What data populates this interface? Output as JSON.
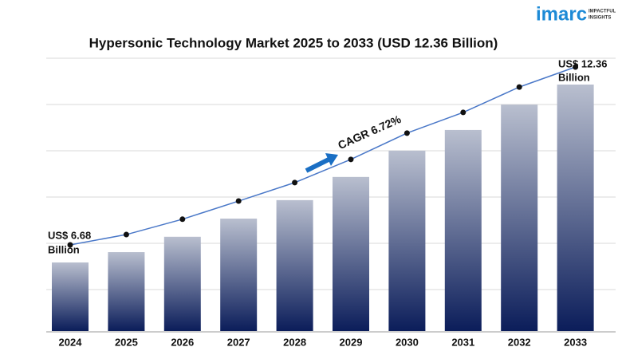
{
  "chart_data": {
    "type": "bar",
    "title": "Hypersonic Technology Market 2025 to 2033 (USD 12.36 Billion)",
    "brand": "imarc",
    "brand_tagline": [
      "IMPACTFUL",
      "INSIGHTS"
    ],
    "categories": [
      "2024",
      "2025",
      "2026",
      "2027",
      "2028",
      "2029",
      "2030",
      "2031",
      "2032",
      "2033"
    ],
    "values": [
      6.68,
      7.01,
      7.5,
      8.08,
      8.67,
      9.41,
      10.25,
      10.91,
      11.72,
      12.36
    ],
    "annotations": {
      "start": [
        "US$ 6.68",
        "Billion"
      ],
      "end": [
        "US$ 12.36",
        "Billion"
      ],
      "cagr": "CAGR 6.72%"
    },
    "color_top": "#b9bfcf",
    "color_bottom": "#0b1d5a",
    "line_color": "#4a78c8",
    "arrow_color": "#1a6fc4"
  }
}
